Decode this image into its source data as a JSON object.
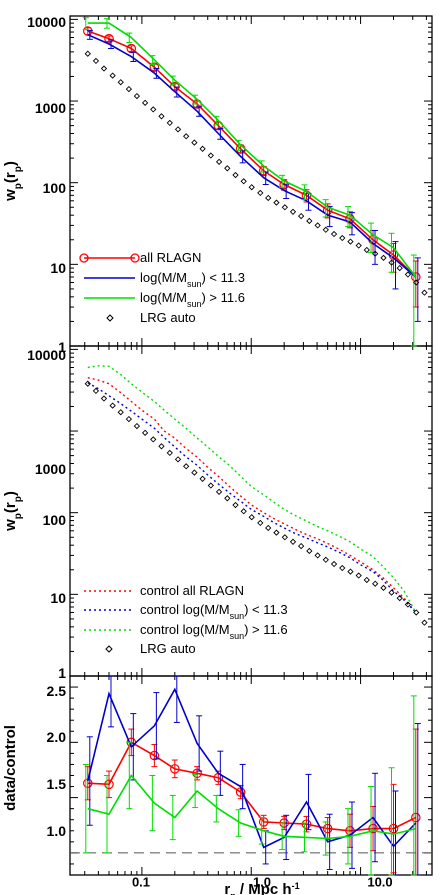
{
  "chart_data": [
    {
      "type": "line",
      "panel": "top",
      "ylabel": "w_p(r_p)",
      "xscale": "log",
      "yscale": "log",
      "xlim": [
        0.022,
        45
      ],
      "ylim": [
        1,
        11000
      ],
      "ytick_labels": [
        "1",
        "10",
        "100",
        "1000",
        "10000"
      ],
      "legend_position": "lower-left",
      "series": [
        {
          "name": "all RLAGN",
          "color": "#ff0000",
          "style": "solid-circles",
          "x": [
            0.032,
            0.05,
            0.08,
            0.13,
            0.2,
            0.32,
            0.5,
            0.8,
            1.3,
            2.0,
            3.2,
            5.0,
            8.0,
            13.0,
            20.0,
            32.0
          ],
          "y": [
            7200,
            5800,
            4400,
            2600,
            1500,
            920,
            500,
            260,
            140,
            95,
            70,
            46,
            36,
            20,
            13,
            7
          ],
          "yerr": [
            700,
            450,
            350,
            220,
            130,
            80,
            50,
            30,
            18,
            14,
            12,
            9,
            8,
            6,
            5,
            4
          ]
        },
        {
          "name": "log(M/M_sun) < 11.3",
          "color": "#0000cc",
          "style": "solid",
          "x": [
            0.032,
            0.05,
            0.08,
            0.13,
            0.2,
            0.32,
            0.5,
            0.8,
            1.3,
            2.0,
            3.2,
            5.0,
            8.0,
            13.0,
            20.0,
            32.0
          ],
          "y": [
            6500,
            5000,
            3500,
            2200,
            1300,
            750,
            400,
            210,
            115,
            80,
            60,
            40,
            33,
            18,
            12,
            7
          ],
          "yerr": [
            800,
            600,
            450,
            300,
            180,
            100,
            60,
            35,
            20,
            16,
            14,
            11,
            10,
            8,
            7,
            5
          ]
        },
        {
          "name": "log(M/M_sun) > 11.6",
          "color": "#00dd00",
          "style": "solid",
          "x": [
            0.032,
            0.05,
            0.08,
            0.13,
            0.2,
            0.32,
            0.5,
            0.8,
            1.3,
            2.0,
            3.2,
            5.0,
            8.0,
            13.0,
            20.0,
            32.0
          ],
          "y": [
            9000,
            9000,
            6000,
            3200,
            1800,
            1050,
            580,
            290,
            160,
            105,
            78,
            50,
            40,
            23,
            16,
            7
          ],
          "yerr": [
            1500,
            1200,
            800,
            400,
            220,
            130,
            70,
            40,
            25,
            18,
            16,
            12,
            11,
            9,
            8,
            6
          ]
        },
        {
          "name": "LRG auto",
          "color": "#000000",
          "style": "diamonds",
          "x": [
            0.032,
            0.038,
            0.045,
            0.054,
            0.064,
            0.076,
            0.09,
            0.107,
            0.127,
            0.151,
            0.18,
            0.214,
            0.254,
            0.302,
            0.359,
            0.427,
            0.508,
            0.604,
            0.718,
            0.853,
            1.01,
            1.21,
            1.43,
            1.7,
            2.03,
            2.41,
            2.86,
            3.4,
            4.05,
            4.81,
            5.72,
            6.8,
            8.08,
            9.61,
            11.4,
            13.6,
            16.2,
            19.2,
            22.8,
            27.1,
            32.3,
            38.4
          ],
          "y": [
            3800,
            3100,
            2500,
            2050,
            1700,
            1400,
            1150,
            950,
            790,
            650,
            540,
            450,
            370,
            310,
            260,
            215,
            180,
            150,
            124,
            104,
            88,
            75,
            65,
            57,
            50,
            44,
            39,
            34,
            30,
            26.5,
            23.5,
            21,
            19,
            17,
            15,
            13.5,
            12,
            10.5,
            9,
            7.5,
            6,
            4.5
          ]
        }
      ]
    },
    {
      "type": "line",
      "panel": "middle",
      "ylabel": "w_p(r_p)",
      "xscale": "log",
      "yscale": "log",
      "xlim": [
        0.022,
        45
      ],
      "ylim": [
        1,
        11000
      ],
      "ytick_labels": [
        "1",
        "10",
        "100",
        "1000",
        "10000"
      ],
      "legend_position": "lower-left",
      "series": [
        {
          "name": "control all RLAGN",
          "color": "#ff0000",
          "style": "dotted",
          "x": [
            0.032,
            0.04,
            0.05,
            0.063,
            0.08,
            0.1,
            0.13,
            0.16,
            0.2,
            0.25,
            0.32,
            0.4,
            0.5,
            0.63,
            0.8,
            1.0,
            1.3,
            1.6,
            2.0,
            2.5,
            3.2,
            4.0,
            5.0,
            6.3,
            8.0,
            10.0,
            13.0,
            16.0,
            20.0,
            25.0,
            32.0
          ],
          "y": [
            4500,
            4200,
            3800,
            3000,
            2300,
            1800,
            1400,
            1000,
            820,
            620,
            480,
            360,
            280,
            210,
            160,
            125,
            100,
            85,
            73,
            63,
            54,
            48,
            42,
            36,
            30,
            25,
            20,
            16,
            12,
            9,
            6
          ]
        },
        {
          "name": "control log(M/M_sun) < 11.3",
          "color": "#0000cc",
          "style": "dotted",
          "x": [
            0.032,
            0.04,
            0.05,
            0.063,
            0.08,
            0.1,
            0.13,
            0.16,
            0.2,
            0.25,
            0.32,
            0.4,
            0.5,
            0.63,
            0.8,
            1.0,
            1.3,
            1.6,
            2.0,
            2.5,
            3.2,
            4.0,
            5.0,
            6.3,
            8.0,
            10.0,
            13.0,
            16.0,
            20.0,
            25.0,
            32.0
          ],
          "y": [
            3900,
            3300,
            2700,
            2200,
            1750,
            1400,
            1080,
            830,
            640,
            490,
            380,
            290,
            225,
            175,
            138,
            110,
            90,
            76,
            65,
            56,
            49,
            43,
            38,
            33,
            28,
            23,
            19,
            15,
            11,
            8.5,
            6
          ]
        },
        {
          "name": "control log(M/M_sun) > 11.6",
          "color": "#00dd00",
          "style": "dotted",
          "x": [
            0.032,
            0.04,
            0.05,
            0.063,
            0.08,
            0.1,
            0.13,
            0.16,
            0.2,
            0.25,
            0.32,
            0.4,
            0.5,
            0.63,
            0.8,
            1.0,
            1.3,
            1.6,
            2.0,
            2.5,
            3.2,
            4.0,
            5.0,
            6.3,
            8.0,
            10.0,
            13.0,
            16.0,
            20.0,
            25.0,
            32.0
          ],
          "y": [
            6000,
            6300,
            6200,
            5000,
            3800,
            3000,
            2300,
            1800,
            1400,
            1100,
            820,
            640,
            490,
            380,
            280,
            210,
            165,
            135,
            110,
            93,
            79,
            68,
            60,
            52,
            44,
            36,
            29,
            22,
            16,
            11,
            6
          ]
        },
        {
          "name": "LRG auto",
          "color": "#000000",
          "style": "diamonds",
          "x": [
            0.032,
            0.038,
            0.045,
            0.054,
            0.064,
            0.076,
            0.09,
            0.107,
            0.127,
            0.151,
            0.18,
            0.214,
            0.254,
            0.302,
            0.359,
            0.427,
            0.508,
            0.604,
            0.718,
            0.853,
            1.01,
            1.21,
            1.43,
            1.7,
            2.03,
            2.41,
            2.86,
            3.4,
            4.05,
            4.81,
            5.72,
            6.8,
            8.08,
            9.61,
            11.4,
            13.6,
            16.2,
            19.2,
            22.8,
            27.1,
            32.3,
            38.4
          ],
          "y": [
            3800,
            3100,
            2500,
            2050,
            1700,
            1400,
            1150,
            950,
            790,
            650,
            540,
            450,
            370,
            310,
            260,
            215,
            180,
            150,
            124,
            104,
            88,
            75,
            65,
            57,
            50,
            44,
            39,
            34,
            30,
            26.5,
            23.5,
            21,
            19,
            17,
            15,
            13.5,
            12,
            10.5,
            9,
            7.5,
            6,
            4.5
          ]
        }
      ]
    },
    {
      "type": "line",
      "panel": "bottom",
      "ylabel": "data/control",
      "xlabel": "r_p / Mpc h^-1",
      "xscale": "log",
      "yscale": "linear",
      "xlim": [
        0.022,
        45
      ],
      "ylim": [
        0.8,
        2.6
      ],
      "ytick_labels": [
        "1.0",
        "1.5",
        "2.0",
        "2.5"
      ],
      "xtick_labels": [
        "0.1",
        "1.0",
        "10.0"
      ],
      "reference_line": 1.0,
      "series": [
        {
          "name": "all RLAGN",
          "color": "#ff0000",
          "style": "solid-circles",
          "x": [
            0.032,
            0.05,
            0.08,
            0.13,
            0.2,
            0.32,
            0.5,
            0.8,
            1.3,
            2.0,
            3.2,
            5.0,
            8.0,
            13.0,
            20.0,
            32.0
          ],
          "y": [
            1.63,
            1.62,
            2.0,
            1.88,
            1.76,
            1.72,
            1.68,
            1.55,
            1.28,
            1.27,
            1.26,
            1.22,
            1.2,
            1.22,
            1.22,
            1.32
          ],
          "yerr": [
            0.15,
            0.12,
            0.12,
            0.1,
            0.08,
            0.06,
            0.06,
            0.06,
            0.06,
            0.06,
            0.07,
            0.1,
            0.15,
            0.2,
            0.4,
            0.8
          ]
        },
        {
          "name": "log(M/M_sun) < 11.3",
          "color": "#0000cc",
          "style": "solid",
          "x": [
            0.032,
            0.05,
            0.08,
            0.13,
            0.2,
            0.32,
            0.5,
            0.8,
            1.3,
            2.0,
            3.2,
            5.0,
            8.0,
            13.0,
            20.0,
            32.0
          ],
          "y": [
            1.65,
            2.44,
            1.96,
            2.15,
            2.48,
            1.99,
            1.72,
            1.6,
            1.05,
            1.14,
            1.46,
            1.1,
            1.16,
            1.32,
            1.06,
            1.27
          ],
          "yerr": [
            0.4,
            0.3,
            0.3,
            0.3,
            0.3,
            0.25,
            0.2,
            0.2,
            0.15,
            0.2,
            0.25,
            0.25,
            0.3,
            0.4,
            0.5,
            0.9
          ]
        },
        {
          "name": "log(M/M_sun) > 11.6",
          "color": "#00dd00",
          "style": "solid",
          "x": [
            0.032,
            0.05,
            0.08,
            0.13,
            0.2,
            0.32,
            0.5,
            0.8,
            1.3,
            2.0,
            3.2,
            5.0,
            8.0,
            13.0,
            20.0,
            32.0
          ],
          "y": [
            1.4,
            1.35,
            1.7,
            1.45,
            1.32,
            1.56,
            1.4,
            1.27,
            1.2,
            1.15,
            1.14,
            1.13,
            1.15,
            1.2,
            1.17,
            1.22
          ],
          "yerr": [
            0.4,
            0.35,
            0.3,
            0.25,
            0.2,
            0.15,
            0.12,
            0.12,
            0.12,
            0.12,
            0.13,
            0.15,
            0.25,
            0.4,
            0.6,
            1.2
          ]
        }
      ]
    }
  ]
}
